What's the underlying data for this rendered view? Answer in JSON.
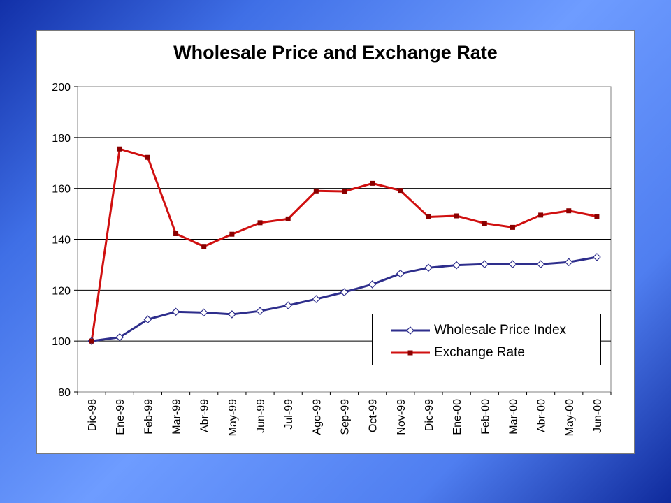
{
  "colors": {
    "wpi": "#2e2e8c",
    "exchange": "#d01010"
  },
  "chart_data": {
    "type": "line",
    "title": "Wholesale Price and Exchange Rate",
    "xlabel": "",
    "ylabel": "",
    "ylim": [
      80,
      200
    ],
    "yticks": [
      80,
      100,
      120,
      140,
      160,
      180,
      200
    ],
    "grid": "horizontal",
    "legend_position": "bottom-right inside plot",
    "categories": [
      "Dic-98",
      "Ene-99",
      "Feb-99",
      "Mar-99",
      "Abr-99",
      "May-99",
      "Jun-99",
      "Jul-99",
      "Ago-99",
      "Sep-99",
      "Oct-99",
      "Nov-99",
      "Dic-99",
      "Ene-00",
      "Feb-00",
      "Mar-00",
      "Abr-00",
      "May-00",
      "Jun-00"
    ],
    "series": [
      {
        "name": "Wholesale Price Index",
        "marker": "diamond-open",
        "values": [
          100,
          101.5,
          108.5,
          111.5,
          111.2,
          110.5,
          111.8,
          114,
          116.5,
          119.2,
          122.3,
          126.5,
          128.8,
          129.8,
          130.2,
          130.2,
          130.2,
          131,
          133
        ]
      },
      {
        "name": "Exchange Rate",
        "marker": "square-filled",
        "values": [
          100,
          175.5,
          172.2,
          142.2,
          137.2,
          142,
          146.5,
          148,
          159,
          158.8,
          162,
          159.2,
          148.8,
          149.2,
          146.3,
          144.7,
          149.5,
          151.2,
          149
        ]
      }
    ]
  }
}
